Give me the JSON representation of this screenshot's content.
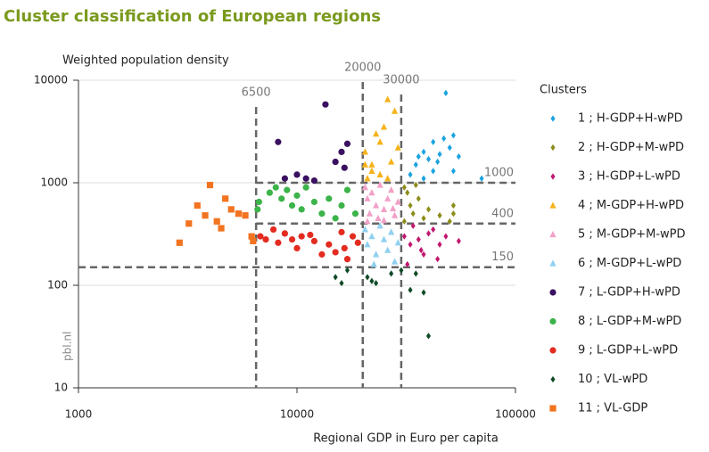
{
  "chart_data": {
    "type": "scatter",
    "title": "Cluster classification of European regions",
    "y_label": "Weighted population density",
    "x_label": "Regional GDP in Euro per capita",
    "watermark": "pbl.nl",
    "legend_title": "Clusters",
    "xscale": "log",
    "yscale": "log",
    "xlim": [
      1000,
      100000
    ],
    "ylim": [
      10,
      10000
    ],
    "xticks": [
      1000,
      10000,
      100000
    ],
    "yticks": [
      10,
      100,
      1000,
      10000
    ],
    "grid": true,
    "vlines": [
      6500,
      20000,
      30000
    ],
    "hlines": [
      1000,
      400,
      150
    ],
    "series": [
      {
        "name": "1 ; H-GDP+H-wPD",
        "color": "#1ba3e0",
        "marker": "diamond",
        "x": [
          33000,
          35000,
          36000,
          38000,
          40000,
          42000,
          44000,
          45000,
          47000,
          48000,
          50000,
          52000,
          52000,
          55000,
          70000,
          38000,
          42000
        ],
        "values": [
          1200,
          1500,
          1800,
          2000,
          1700,
          2500,
          1600,
          1900,
          2700,
          7500,
          2200,
          1300,
          2900,
          1800,
          1100,
          1100,
          1300
        ]
      },
      {
        "name": "2 ; H-GDP+M-wPD",
        "color": "#8c8c1a",
        "marker": "diamond",
        "x": [
          31000,
          32000,
          33000,
          34000,
          36000,
          38000,
          40000,
          45000,
          50000,
          52000,
          52000,
          31000,
          35000
        ],
        "values": [
          900,
          800,
          600,
          500,
          700,
          450,
          550,
          480,
          420,
          600,
          500,
          420,
          950
        ]
      },
      {
        "name": "3 ; H-GDP+L-wPD",
        "color": "#c0186f",
        "marker": "diamond",
        "x": [
          31000,
          33000,
          34000,
          36000,
          38000,
          40000,
          42000,
          44000,
          45000,
          48000,
          55000,
          32000,
          37000
        ],
        "values": [
          300,
          250,
          380,
          280,
          200,
          320,
          350,
          180,
          250,
          300,
          270,
          160,
          220
        ]
      },
      {
        "name": "4 ; M-GDP+H-wPD",
        "color": "#f5b21a",
        "marker": "triangle",
        "x": [
          20500,
          21000,
          22000,
          23000,
          24000,
          25000,
          26000,
          27000,
          24000,
          28000,
          22000,
          26000,
          29000,
          20500
        ],
        "values": [
          2000,
          1100,
          1500,
          3000,
          2500,
          3500,
          6500,
          1600,
          1200,
          5000,
          1300,
          1100,
          2200,
          1500
        ]
      },
      {
        "name": "5 ; M-GDP+M-wPD",
        "color": "#f2a0c8",
        "marker": "triangle",
        "x": [
          20500,
          21000,
          21500,
          22000,
          23000,
          23500,
          24000,
          25000,
          26000,
          27000,
          28000,
          29000,
          21000,
          25000,
          27500
        ],
        "values": [
          900,
          700,
          500,
          800,
          600,
          450,
          950,
          550,
          700,
          850,
          480,
          650,
          420,
          430,
          560
        ]
      },
      {
        "name": "6 ; M-GDP+L-wPD",
        "color": "#8fd0f0",
        "marker": "triangle",
        "x": [
          20500,
          21000,
          22000,
          23000,
          24000,
          25000,
          26000,
          27000,
          28000,
          29000,
          22500
        ],
        "values": [
          350,
          250,
          300,
          200,
          380,
          280,
          220,
          330,
          170,
          260,
          160
        ]
      },
      {
        "name": "7 ; L-GDP+H-wPD",
        "color": "#3a1060",
        "marker": "circle",
        "x": [
          8200,
          8800,
          10000,
          11000,
          13500,
          15000,
          16000,
          16500,
          17000,
          12000
        ],
        "values": [
          2500,
          1100,
          1200,
          1100,
          5800,
          1600,
          2000,
          1400,
          2400,
          1050
        ]
      },
      {
        "name": "8 ; L-GDP+M-wPD",
        "color": "#3cb44a",
        "marker": "circle",
        "x": [
          6700,
          7500,
          8000,
          8500,
          9000,
          9500,
          10000,
          10500,
          11000,
          12000,
          13000,
          14000,
          15000,
          16000,
          17000,
          18500,
          6600
        ],
        "values": [
          650,
          800,
          900,
          700,
          850,
          600,
          750,
          550,
          900,
          650,
          500,
          700,
          450,
          600,
          850,
          500,
          550
        ]
      },
      {
        "name": "9 ; L-GDP+L-wPD",
        "color": "#e32b20",
        "marker": "circle",
        "x": [
          6800,
          7200,
          7800,
          8200,
          8800,
          9500,
          10000,
          10500,
          11500,
          12000,
          13000,
          14000,
          15000,
          16000,
          17000,
          18000,
          19000,
          16500
        ],
        "values": [
          300,
          280,
          350,
          260,
          320,
          280,
          230,
          300,
          310,
          270,
          200,
          250,
          210,
          330,
          180,
          300,
          260,
          230
        ]
      },
      {
        "name": "10 ; VL-wPD",
        "color": "#0e4a26",
        "marker": "diamond",
        "x": [
          15000,
          16000,
          17000,
          21000,
          22000,
          23000,
          27000,
          30000,
          33000,
          38000,
          40000,
          35000
        ],
        "values": [
          120,
          105,
          140,
          120,
          110,
          105,
          130,
          140,
          90,
          85,
          32,
          130
        ]
      },
      {
        "name": "11 ; VL-GDP",
        "color": "#f27420",
        "marker": "square",
        "x": [
          2900,
          3200,
          3500,
          3800,
          4000,
          4300,
          4700,
          5000,
          5400,
          5800,
          6200,
          6300,
          4500
        ],
        "values": [
          260,
          400,
          600,
          480,
          950,
          420,
          700,
          550,
          500,
          480,
          300,
          270,
          360
        ]
      }
    ]
  }
}
